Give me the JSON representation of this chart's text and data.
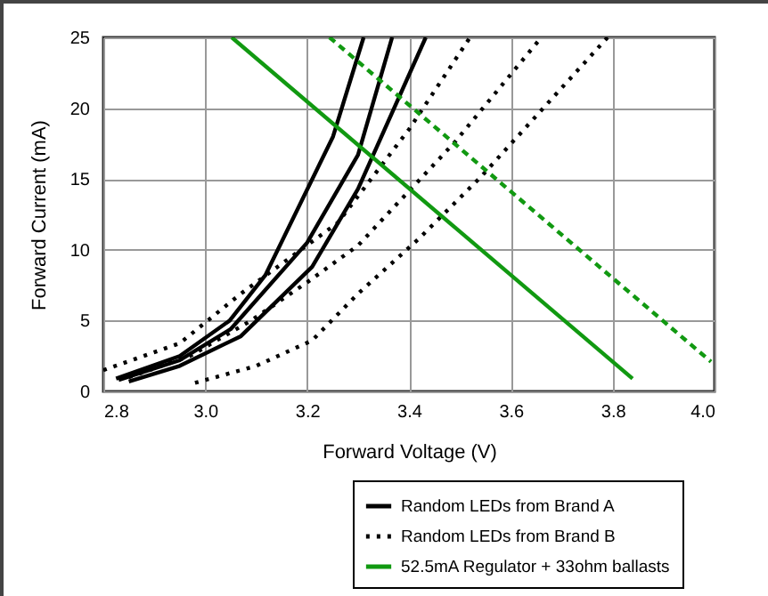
{
  "chart_data": {
    "type": "line",
    "xlabel": "Forward Voltage (V)",
    "ylabel": "Forward Current (mA)",
    "xlim": [
      2.8,
      4.0
    ],
    "xticks": [
      2.8,
      {
        "value": 3,
        "label": "3.0"
      },
      3.2,
      3.4,
      3.6,
      3.8,
      {
        "value": 4,
        "label": "4.0"
      }
    ],
    "ylim": [
      0,
      25
    ],
    "yticks": [
      0,
      5,
      10,
      15,
      20,
      25
    ],
    "grid": true,
    "legend": "bottom right",
    "series": [
      {
        "name": "Random LEDs from Brand A",
        "color": "#000000",
        "line_style": "solid",
        "x": [
          2.825,
          2.95,
          3.048,
          3.118,
          3.251,
          3.311
        ],
        "values": [
          0.9,
          2.5,
          5.0,
          8.2,
          18.0,
          25
        ]
      },
      {
        "color": "#000000",
        "line_style": "solid",
        "x": [
          2.83,
          2.95,
          3.05,
          3.2,
          3.3,
          3.367
        ],
        "values": [
          0.8,
          2.2,
          4.4,
          10.5,
          16.7,
          25
        ]
      },
      {
        "color": "#000000",
        "line_style": "solid",
        "x": [
          2.85,
          2.95,
          3.07,
          3.21,
          3.3,
          3.433
        ],
        "values": [
          0.7,
          1.8,
          3.9,
          8.8,
          14.3,
          25
        ]
      },
      {
        "name": "Random LEDs from Brand B",
        "color": "#000000",
        "line_style": "dotted",
        "x": [
          2.8,
          2.95,
          3.07,
          3.26,
          3.4,
          3.52
        ],
        "values": [
          1.5,
          3.4,
          6.9,
          11.9,
          18.5,
          25
        ]
      },
      {
        "color": "#000000",
        "line_style": "dotted",
        "x": [
          2.85,
          2.97,
          3.09,
          3.2,
          3.3,
          3.49,
          3.66
        ],
        "values": [
          1.0,
          2.5,
          5.0,
          7.7,
          10.3,
          17.6,
          25
        ]
      },
      {
        "color": "#000000",
        "line_style": "dotted",
        "x": [
          2.98,
          3.1,
          3.21,
          3.3,
          3.42,
          3.54,
          3.79
        ],
        "values": [
          0.6,
          1.8,
          3.6,
          6.9,
          10.8,
          15.1,
          25
        ]
      },
      {
        "name": "52.5mA Regulator + 33ohm ballasts",
        "color": "#119911",
        "line_style": "solid",
        "x": [
          3.052,
          3.839
        ],
        "values": [
          25,
          0.9
        ]
      },
      {
        "color": "#119911",
        "line_style": "dashed",
        "x": [
          3.244,
          3.993
        ],
        "values": [
          25,
          2.1
        ]
      }
    ]
  }
}
